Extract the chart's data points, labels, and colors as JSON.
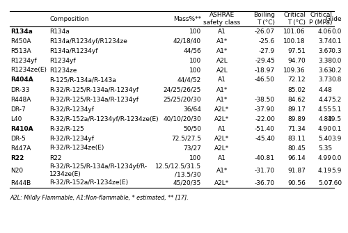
{
  "col_header": [
    "Composition",
    "Mass%**",
    "ASHRAE\nsafety class",
    "Boiling\nT (°C)",
    "Critical\nT (°C)",
    "Critical\nP (MPa)",
    "Glide"
  ],
  "rows": [
    [
      "R134a",
      "R134a",
      "100",
      "A1",
      "-26.07",
      "101.06",
      "4.06",
      "0.0"
    ],
    [
      "R450A",
      "R134a/R1234yf/R1234ze",
      "42/18/40",
      "A1*",
      "-25.6",
      "100.18",
      "3.74",
      "0.1"
    ],
    [
      "R513A",
      "R134a/R1234yf",
      "44/56",
      "A1*",
      "-27.9",
      "97.51",
      "3.67",
      "-0.3"
    ],
    [
      "R1234yf",
      "R1234yf",
      "100",
      "A2L",
      "-29.45",
      "94.70",
      "3.38",
      "0.0"
    ],
    [
      "R1234ze(E)",
      "R1234ze",
      "100",
      "A2L",
      "-18.97",
      "109.36",
      "3.63",
      "-0.2"
    ],
    [
      "R404A",
      "R-125/R-134a/R-143a",
      "44/4/52",
      "A1",
      "-46.50",
      "72.12",
      "3.73",
      "0.8"
    ],
    [
      "DR-33",
      "R-32/R-125/R-134a/R-1234yf",
      "24/25/26/25",
      "A1*",
      "",
      "85.02",
      "4.48",
      ""
    ],
    [
      "R448A",
      "R-32/R-125/R-134a/R-1234yf",
      "25/25/20/30",
      "A1*",
      "-38.50",
      "84.62",
      "4.47",
      "5.2"
    ],
    [
      "DR-7",
      "R-32/R-1234yf",
      "36/64",
      "A2L*",
      "-37.90",
      "89.17",
      "4.55",
      "5.1"
    ],
    [
      "L40",
      "R-32/R-152a/R-1234yf/R-1234ze(E)",
      "40/10/20/30",
      "A2L*",
      "-22.00",
      "89.89",
      "4.84",
      "19.5"
    ],
    [
      "R410A",
      "R-32/R-125",
      "50/50",
      "A1",
      "-51.40",
      "71.34",
      "4.90",
      "0.1"
    ],
    [
      "DR-5",
      "R-32/R-1234yf",
      "72.5/27.5",
      "A2L*",
      "-45.40",
      "83.11",
      "5.40",
      "3.9"
    ],
    [
      "R447A",
      "R-32/R-1234ze(E)",
      "73/27",
      "A2L*",
      "",
      "80.45",
      "5.35",
      ""
    ],
    [
      "R22",
      "R22",
      "100",
      "A1",
      "-40.81",
      "96.14",
      "4.99",
      "0.0"
    ],
    [
      "N20",
      "R-32/R-125/R-134a/R-1234yf/R-\n1234ze(E)",
      "12.5/12.5/31.5\n/13.5/30",
      "A1*",
      "-31.70",
      "91.87",
      "4.19",
      "5.9"
    ],
    [
      "R444B",
      "R-32/R-152a/R-1234ze(E)",
      "45/20/35",
      "A2L*",
      "-36.70",
      "90.56",
      "5.07",
      "7.60"
    ]
  ],
  "bold_ids": [
    "R134a",
    "R404A",
    "R410A",
    "R22"
  ],
  "footnote": "A2L: Mildly Flammable, A1:Non-flammable, * estimated, ** [17].",
  "font_size": 6.5,
  "bg_color": "#ffffff",
  "text_color": "#000000",
  "line_color": "#000000"
}
